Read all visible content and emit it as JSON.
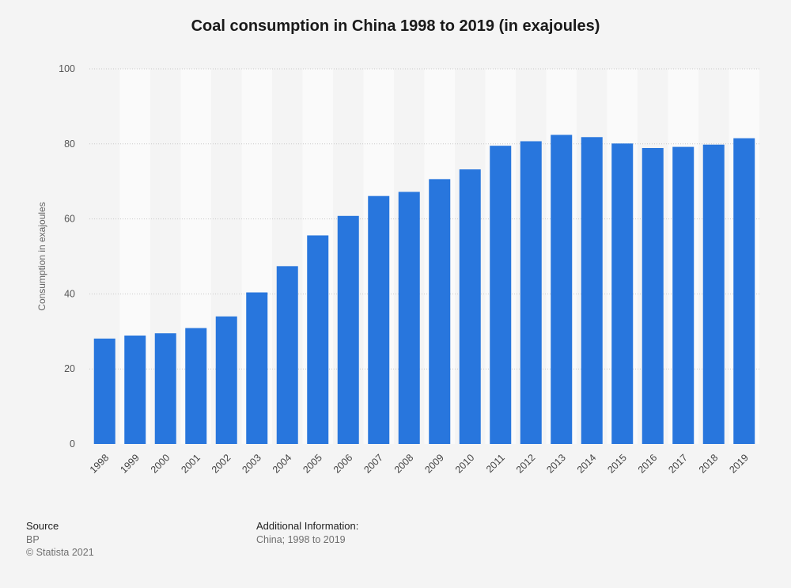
{
  "chart_data": {
    "type": "bar",
    "title": "Coal consumption in China 1998 to 2019 (in exajoules)",
    "xlabel": "",
    "ylabel": "Consumption in exajoules",
    "ylim": [
      0,
      100
    ],
    "yticks": [
      0,
      20,
      40,
      60,
      80,
      100
    ],
    "categories": [
      "1998",
      "1999",
      "2000",
      "2001",
      "2002",
      "2003",
      "2004",
      "2005",
      "2006",
      "2007",
      "2008",
      "2009",
      "2010",
      "2011",
      "2012",
      "2013",
      "2014",
      "2015",
      "2016",
      "2017",
      "2018",
      "2019"
    ],
    "values": [
      28.1,
      28.9,
      29.5,
      30.9,
      34.0,
      40.4,
      47.4,
      55.6,
      60.8,
      66.1,
      67.2,
      70.6,
      73.2,
      79.5,
      80.7,
      82.4,
      81.8,
      80.1,
      78.9,
      79.2,
      79.8,
      81.5
    ],
    "grid": true,
    "bar_color": "#2876dd"
  },
  "footer": {
    "source_heading": "Source",
    "source_name": "BP",
    "copyright": "© Statista 2021",
    "additional_heading": "Additional Information:",
    "additional_text": "China; 1998 to 2019"
  }
}
